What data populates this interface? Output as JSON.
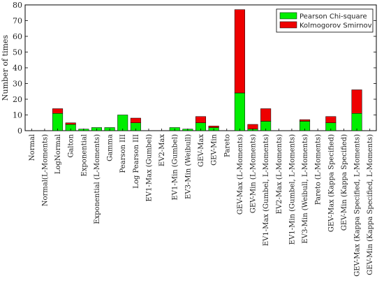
{
  "chart_data": {
    "type": "bar",
    "stacked": true,
    "ylabel": "Number of times",
    "xlabel": "",
    "title": "",
    "ylim": [
      0,
      80
    ],
    "yticks": [
      0,
      10,
      20,
      30,
      40,
      50,
      60,
      70,
      80
    ],
    "grid": false,
    "legend_position": "top-right",
    "categories": [
      "Normal",
      "Normal(L-Moments)",
      "LogNormal",
      "Galton",
      "Exponential",
      "Exponential (L-Moments)",
      "Gamma",
      "Pearson III",
      "Log Pearson III",
      "EV1-Max (Gumbel)",
      "EV2-Max",
      "EV1-Min (Gumbel)",
      "EV3-Min (Weibull)",
      "GEV-Max",
      "GEV-Min",
      "Pareto",
      "GEV-Max (L-Moments)",
      "GEV-Min (L-Moments)",
      "EV1-Max (Gumbel, L-Moments)",
      "EV2-Max (L-Moments)",
      "EV1-Min (Gumbel, L-Moments)",
      "EV3-Min (Weibull, L-Moments)",
      "Pareto (L-Moments)",
      "GEV-Max (Kappa Specified)",
      "GEV-Min (Kappa Specified)",
      "GEV-Max (Kappa Specified, L-Moments)",
      "GEV-Min (Kappa Specified, L-Moments)"
    ],
    "series": [
      {
        "name": "Pearson Chi-square",
        "color": "#00ee00",
        "values": [
          0,
          0,
          11,
          4,
          1,
          2,
          2,
          10,
          5,
          0,
          0,
          2,
          1,
          5,
          2,
          0,
          24,
          1,
          6,
          0,
          0,
          6,
          0,
          5,
          0,
          11,
          0
        ]
      },
      {
        "name": "Kolmogorov Smirnov",
        "color": "#ee0000",
        "values": [
          0,
          0,
          3,
          1,
          0,
          0,
          0,
          0,
          3,
          0,
          0,
          0,
          0,
          4,
          1,
          0,
          53,
          3,
          8,
          0,
          0,
          1,
          0,
          4,
          0,
          15,
          0
        ]
      }
    ]
  }
}
